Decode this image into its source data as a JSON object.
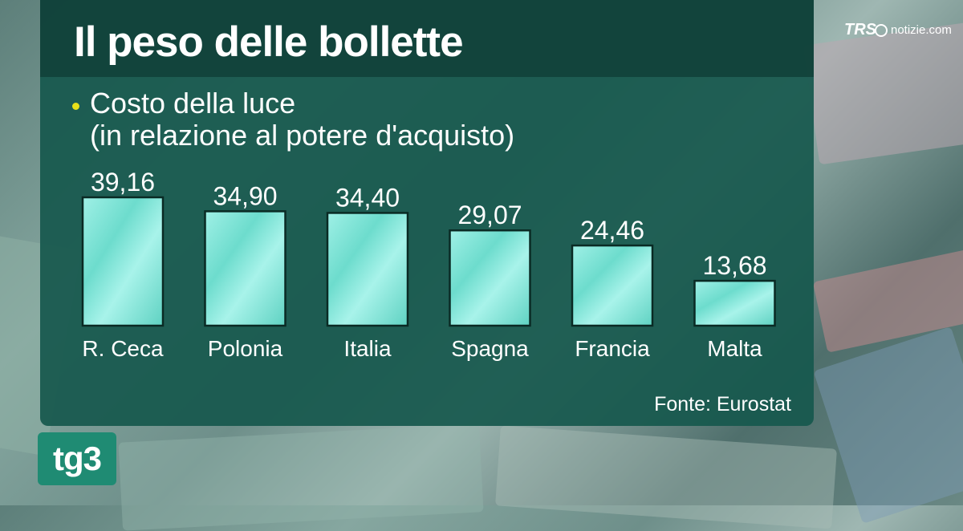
{
  "title": "Il peso delle bollette",
  "subtitle_line1": "Costo della luce",
  "subtitle_line2": "(in relazione al potere d'acquisto)",
  "source": "Fonte: Eurostat",
  "channel_logo": "tg3",
  "brand": {
    "mark": "TRS",
    "text": "notizie.com"
  },
  "colors": {
    "panel": "#17584e",
    "bar_fill": "#7fe3d6",
    "bullet": "#e8e01a",
    "logo": "#1f8b73"
  },
  "chart_data": {
    "type": "bar",
    "categories": [
      "R. Ceca",
      "Polonia",
      "Italia",
      "Spagna",
      "Francia",
      "Malta"
    ],
    "values": [
      39.16,
      34.9,
      34.4,
      29.07,
      24.46,
      13.68
    ],
    "value_labels": [
      "39,16",
      "34,90",
      "34,40",
      "29,07",
      "24,46",
      "13,68"
    ],
    "title": "Il peso delle bollette",
    "subtitle": "Costo della luce (in relazione al potere d'acquisto)",
    "xlabel": "",
    "ylabel": "",
    "ylim": [
      0,
      39.16
    ],
    "grid": false,
    "legend": "none"
  }
}
